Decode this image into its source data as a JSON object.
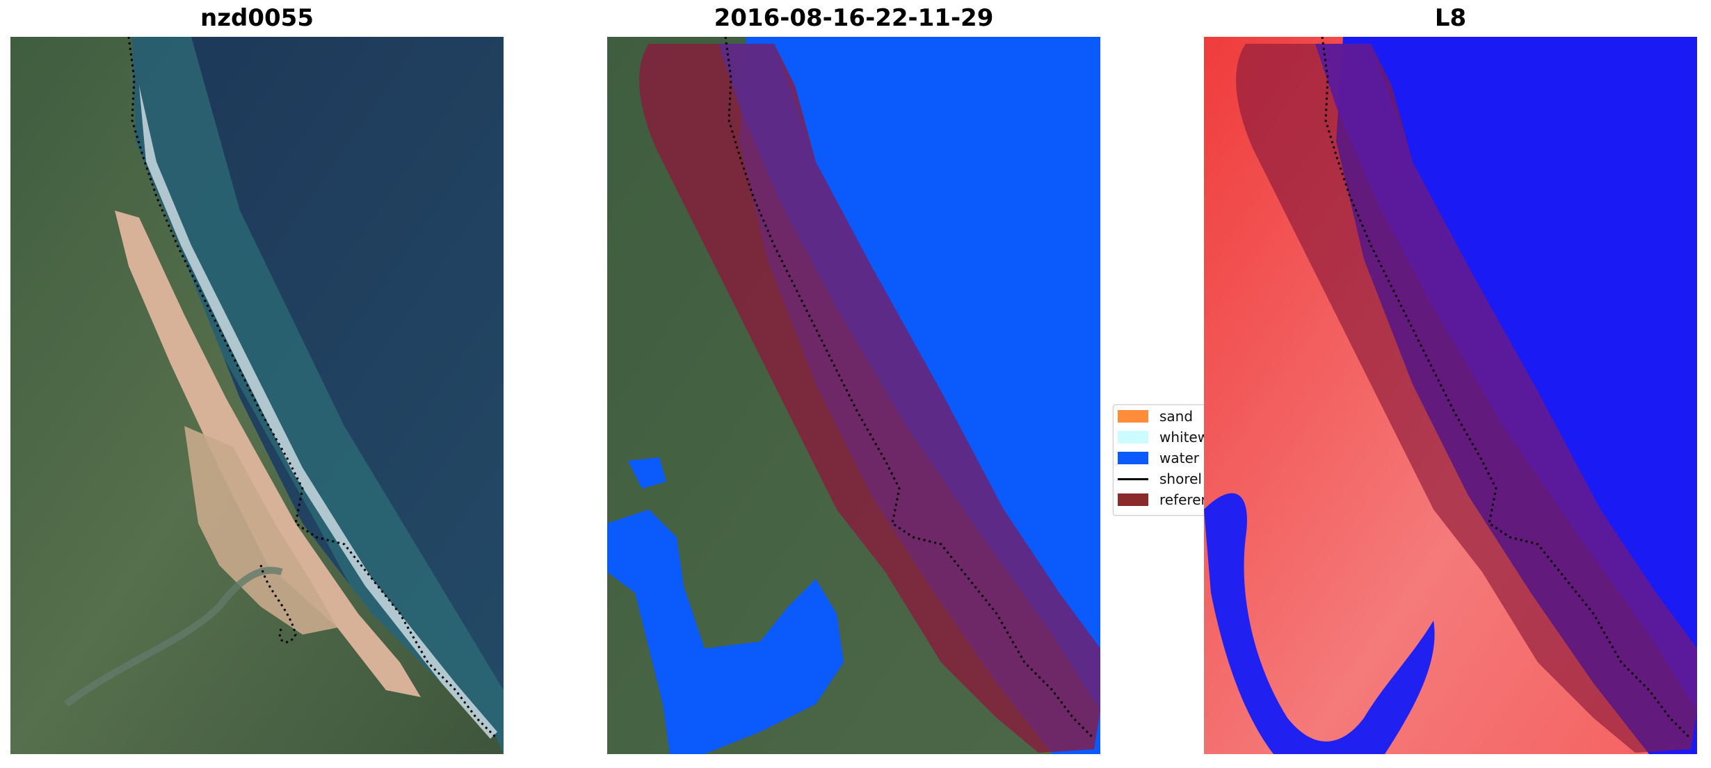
{
  "titles": {
    "left": "nzd0055",
    "middle": "2016-08-16-22-11-29",
    "right": "L8"
  },
  "legend": {
    "items": [
      {
        "label": "sand",
        "color": "#ff8c3a"
      },
      {
        "label": "whitew",
        "color": "#ccfcff"
      },
      {
        "label": "water",
        "color": "#0a5afc"
      },
      {
        "label": "shorel",
        "color": "#000000"
      },
      {
        "label": "referer",
        "color": "#8b2a2a"
      }
    ]
  },
  "colors": {
    "ocean": "#1f3a5a",
    "land": "#4c6a48",
    "beach": "#d8b49a",
    "water_class": "#0a5afc",
    "reference_buffer": "#8b1a3c",
    "index_positive": "#ef4c4c",
    "index_negative": "#1a1af5"
  }
}
